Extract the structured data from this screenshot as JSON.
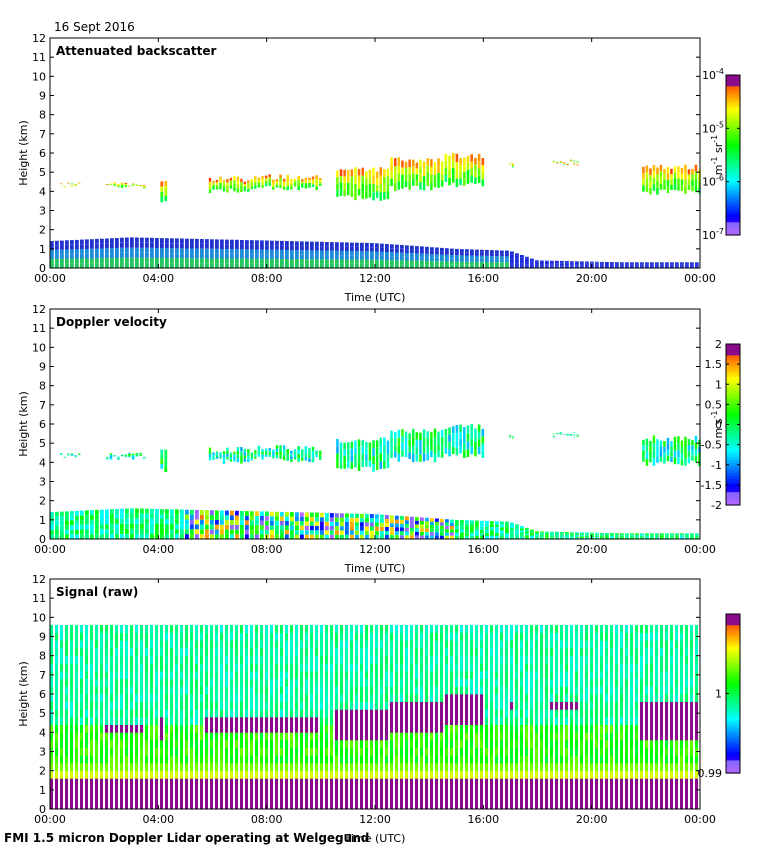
{
  "date_label": "16 Sept 2016",
  "footer": "FMI 1.5 micron Doppler Lidar operating at Welgegund",
  "chart_data": [
    {
      "type": "heatmap",
      "title": "Attenuated backscatter",
      "xlabel": "Time (UTC)",
      "ylabel": "Height (km)",
      "x_ticks": [
        "00:00",
        "04:00",
        "08:00",
        "12:00",
        "16:00",
        "20:00",
        "00:00"
      ],
      "xlim_hours": [
        0,
        24
      ],
      "ylim_km": [
        0,
        12
      ],
      "y_ticks": [
        0,
        1,
        2,
        3,
        4,
        5,
        6,
        7,
        8,
        9,
        10,
        11,
        12
      ],
      "colorbar": {
        "scale": "log",
        "ticks": [
          {
            "base": "10",
            "exp": "-4",
            "value": 0.0001
          },
          {
            "base": "10",
            "exp": "-5",
            "value": 1e-05
          },
          {
            "base": "10",
            "exp": "-6",
            "value": 1e-06
          },
          {
            "base": "10",
            "exp": "-7",
            "value": 1e-07
          }
        ],
        "unit": "m⁻¹ sr⁻¹",
        "unit_parts": [
          "m",
          "-1",
          " sr",
          "-1"
        ]
      },
      "features": {
        "boundary_layer_top_km": [
          {
            "hour": 0,
            "km": 1.4
          },
          {
            "hour": 3,
            "km": 1.6
          },
          {
            "hour": 6,
            "km": 1.5
          },
          {
            "hour": 9,
            "km": 1.4
          },
          {
            "hour": 12,
            "km": 1.3
          },
          {
            "hour": 15,
            "km": 1.0
          },
          {
            "hour": 17,
            "km": 0.9
          },
          {
            "hour": 18,
            "km": 0.4
          },
          {
            "hour": 21,
            "km": 0.3
          },
          {
            "hour": 24,
            "km": 0.3
          }
        ],
        "cloud_layer": [
          {
            "start_hour": 0.3,
            "end_hour": 1.1,
            "base_km": 4.2,
            "top_km": 4.5
          },
          {
            "start_hour": 2.0,
            "end_hour": 3.5,
            "base_km": 4.1,
            "top_km": 4.5
          },
          {
            "start_hour": 4.0,
            "end_hour": 4.3,
            "base_km": 3.4,
            "top_km": 4.8
          },
          {
            "start_hour": 5.8,
            "end_hour": 7.6,
            "base_km": 3.9,
            "top_km": 4.8
          },
          {
            "start_hour": 7.6,
            "end_hour": 10.0,
            "base_km": 4.0,
            "top_km": 4.9
          },
          {
            "start_hour": 10.5,
            "end_hour": 12.5,
            "base_km": 3.5,
            "top_km": 5.3
          },
          {
            "start_hour": 12.5,
            "end_hour": 14.5,
            "base_km": 4.0,
            "top_km": 5.8
          },
          {
            "start_hour": 14.5,
            "end_hour": 16.0,
            "base_km": 4.2,
            "top_km": 6.0
          },
          {
            "start_hour": 16.9,
            "end_hour": 17.1,
            "base_km": 5.2,
            "top_km": 5.5
          },
          {
            "start_hour": 18.5,
            "end_hour": 19.5,
            "base_km": 5.4,
            "top_km": 5.6
          },
          {
            "start_hour": 21.8,
            "end_hour": 24.0,
            "base_km": 3.8,
            "top_km": 5.4
          }
        ]
      }
    },
    {
      "type": "heatmap",
      "title": "Doppler velocity",
      "xlabel": "Time (UTC)",
      "ylabel": "Height (km)",
      "x_ticks": [
        "00:00",
        "04:00",
        "08:00",
        "12:00",
        "16:00",
        "20:00",
        "00:00"
      ],
      "xlim_hours": [
        0,
        24
      ],
      "ylim_km": [
        0,
        12
      ],
      "y_ticks": [
        0,
        1,
        2,
        3,
        4,
        5,
        6,
        7,
        8,
        9,
        10,
        11,
        12
      ],
      "colorbar": {
        "scale": "linear",
        "range": [
          -2,
          2
        ],
        "ticks": [
          "2",
          "1.5",
          "1",
          "0.5",
          "0",
          "-0.5",
          "-1",
          "-1.5",
          "-2"
        ],
        "unit": "m s⁻¹",
        "unit_parts": [
          "m s",
          "-1"
        ]
      }
    },
    {
      "type": "heatmap",
      "title": "Signal (raw)",
      "xlabel": "Time (UTC)",
      "ylabel": "Height (km)",
      "x_ticks": [
        "00:00",
        "04:00",
        "08:00",
        "12:00",
        "16:00",
        "20:00",
        "00:00"
      ],
      "xlim_hours": [
        0,
        24
      ],
      "ylim_km": [
        0,
        12
      ],
      "y_ticks": [
        0,
        1,
        2,
        3,
        4,
        5,
        6,
        7,
        8,
        9,
        10,
        11,
        12
      ],
      "data_top_km": 9.6,
      "colorbar": {
        "scale": "linear",
        "range": [
          0.99,
          1.01
        ],
        "ticks": [
          "1",
          "0.99"
        ],
        "unit": ""
      }
    }
  ]
}
